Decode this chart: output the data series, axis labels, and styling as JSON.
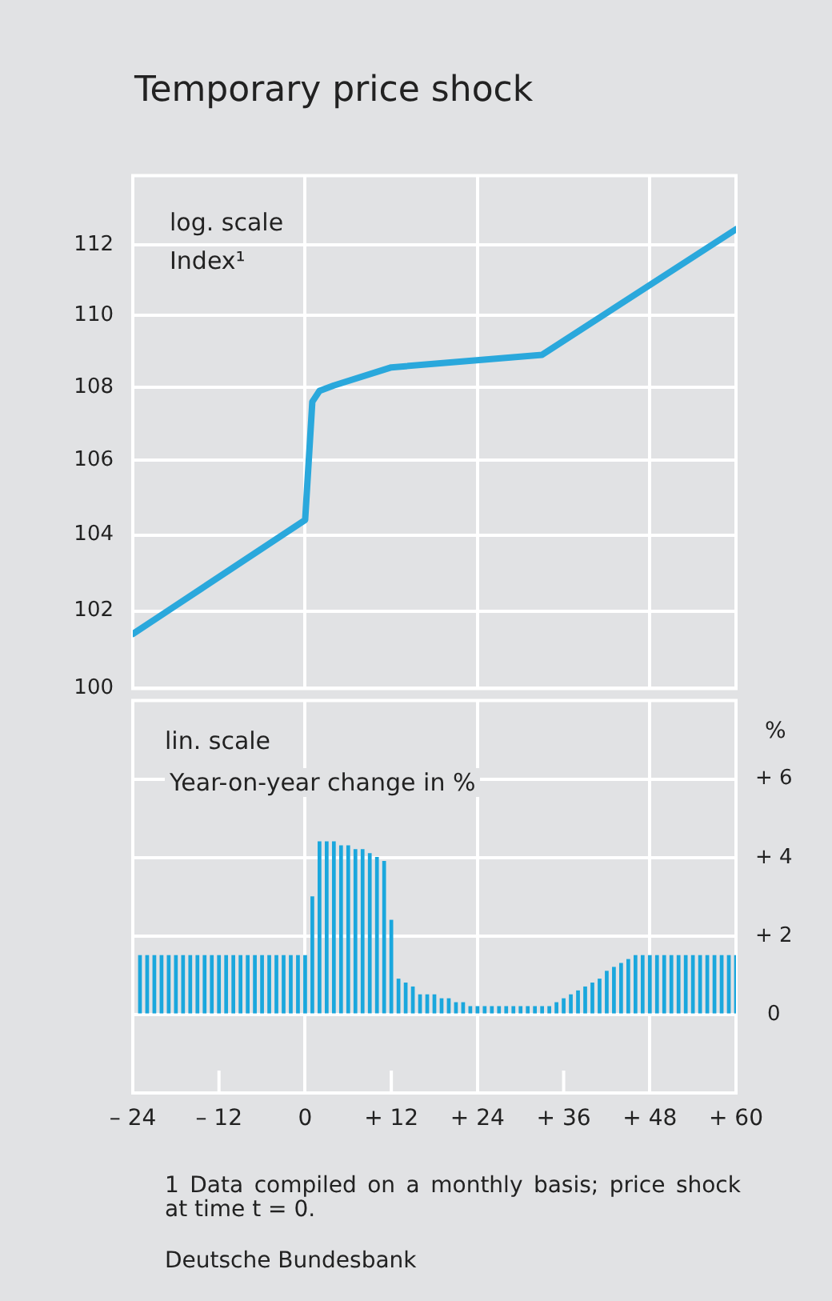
{
  "chart_data": [
    {
      "type": "line",
      "title": "Temporary price shock",
      "annotations": [
        "log. scale",
        "Index¹"
      ],
      "log": "y",
      "grid": true,
      "tick_labels": "y",
      "xlim": [
        -24,
        60
      ],
      "xticks": [
        -24,
        0,
        24,
        48,
        60
      ],
      "ylim": [
        100,
        114
      ],
      "yticks": [
        100,
        102,
        104,
        106,
        108,
        110,
        112
      ],
      "series": [
        {
          "color": "#2aa8dc",
          "x": [
            -24,
            0,
            1,
            2,
            4,
            12,
            33,
            60
          ],
          "values": [
            101.4,
            104.4,
            107.6,
            107.9,
            108.05,
            108.55,
            108.9,
            112.45
          ]
        }
      ]
    },
    {
      "type": "bar",
      "ylabel": "%",
      "annotations": [
        "lin. scale",
        "Year-on-year change in %",
        "1 Data compiled on a monthly basis; price shock at time t = 0.",
        "Deutsche Bundesbank"
      ],
      "grid": true,
      "xlim": [
        -24,
        60
      ],
      "xticks": [
        {
          "value": -24,
          "label": "– 24"
        },
        {
          "value": -12,
          "label": "– 12"
        },
        0,
        {
          "value": 12,
          "label": "+ 12"
        },
        {
          "value": 24,
          "label": "+ 24"
        },
        {
          "value": 36,
          "label": "+ 36"
        },
        {
          "value": 48,
          "label": "+ 48"
        },
        {
          "value": 60,
          "label": "+ 60"
        }
      ],
      "ylim": [
        -2,
        8
      ],
      "yticks": [
        0,
        {
          "value": 2,
          "label": "+ 2"
        },
        {
          "value": 4,
          "label": "+ 4"
        },
        {
          "value": 6,
          "label": "+ 6"
        }
      ],
      "series": [
        {
          "color": "#1aa7dd",
          "x": [
            -23,
            -22,
            -21,
            -20,
            -19,
            -18,
            -17,
            -16,
            -15,
            -14,
            -13,
            -12,
            -11,
            -10,
            -9,
            -8,
            -7,
            -6,
            -5,
            -4,
            -3,
            -2,
            -1,
            0,
            1,
            2,
            3,
            4,
            5,
            6,
            7,
            8,
            9,
            10,
            11,
            12,
            13,
            14,
            15,
            16,
            17,
            18,
            19,
            20,
            21,
            22,
            23,
            24,
            25,
            26,
            27,
            28,
            29,
            30,
            31,
            32,
            33,
            34,
            35,
            36,
            37,
            38,
            39,
            40,
            41,
            42,
            43,
            44,
            45,
            46,
            47,
            48,
            49,
            50,
            51,
            52,
            53,
            54,
            55,
            56,
            57,
            58,
            59,
            60
          ],
          "values": [
            1.5,
            1.5,
            1.5,
            1.5,
            1.5,
            1.5,
            1.5,
            1.5,
            1.5,
            1.5,
            1.5,
            1.5,
            1.5,
            1.5,
            1.5,
            1.5,
            1.5,
            1.5,
            1.5,
            1.5,
            1.5,
            1.5,
            1.5,
            1.5,
            3.0,
            4.4,
            4.4,
            4.4,
            4.3,
            4.3,
            4.2,
            4.2,
            4.1,
            4.0,
            3.9,
            2.4,
            0.9,
            0.8,
            0.7,
            0.5,
            0.5,
            0.5,
            0.4,
            0.4,
            0.3,
            0.3,
            0.2,
            0.2,
            0.2,
            0.2,
            0.2,
            0.2,
            0.2,
            0.2,
            0.2,
            0.2,
            0.2,
            0.2,
            0.3,
            0.4,
            0.5,
            0.6,
            0.7,
            0.8,
            0.9,
            1.1,
            1.2,
            1.3,
            1.4,
            1.5,
            1.5,
            1.5,
            1.5,
            1.5,
            1.5,
            1.5,
            1.5,
            1.5,
            1.5,
            1.5,
            1.5,
            1.5,
            1.5,
            1.5
          ]
        }
      ]
    }
  ]
}
